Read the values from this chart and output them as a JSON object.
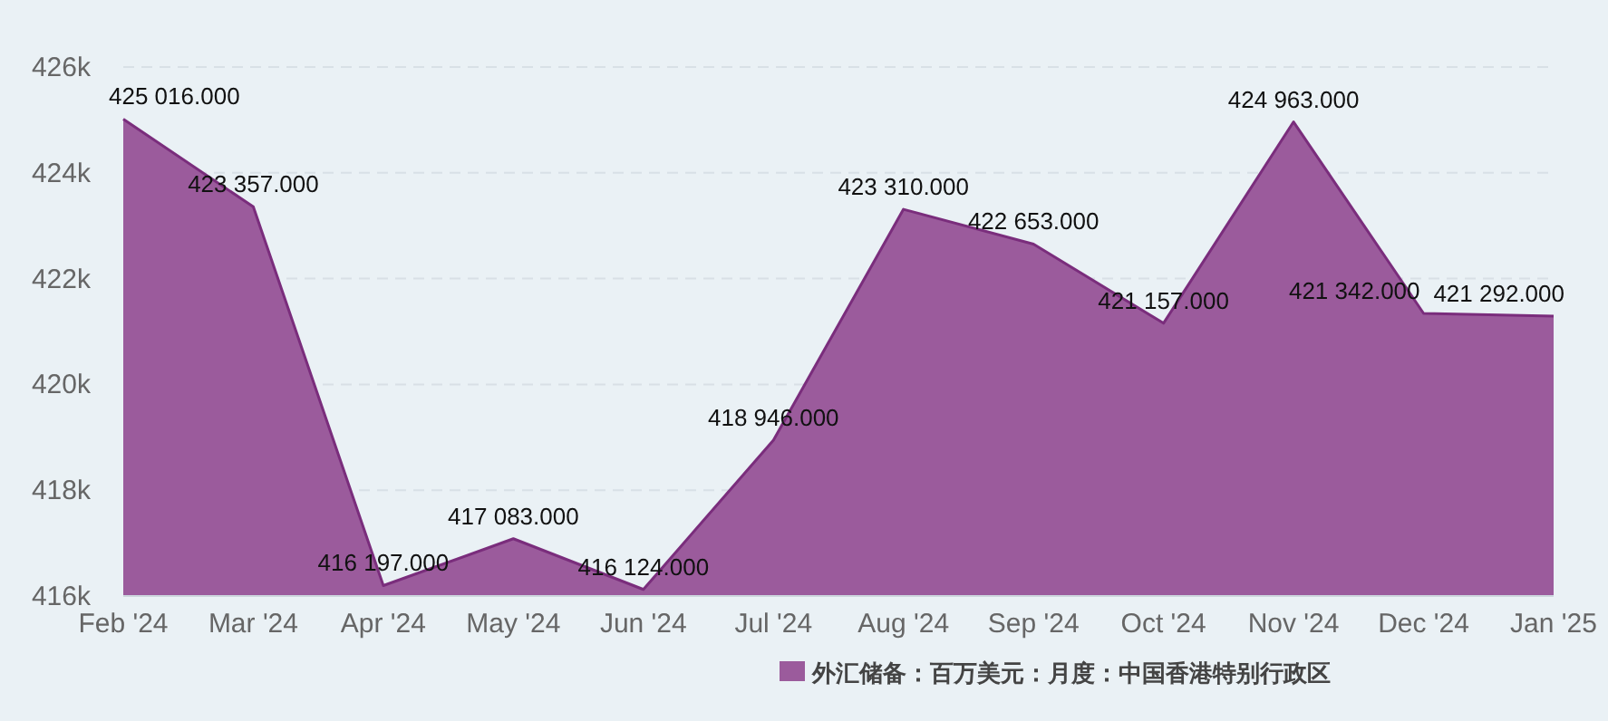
{
  "chart_data": {
    "type": "area",
    "categories": [
      "Feb '24",
      "Mar '24",
      "Apr '24",
      "May '24",
      "Jun '24",
      "Jul '24",
      "Aug '24",
      "Sep '24",
      "Oct '24",
      "Nov '24",
      "Dec '24",
      "Jan '25"
    ],
    "series": [
      {
        "name": "外汇储备：百万美元：月度：中国香港特别行政区",
        "color": "#9b5b9c",
        "values": [
          425016,
          423357,
          416197,
          417083,
          416124,
          418946,
          423310,
          422653,
          421157,
          424963,
          421342,
          421292
        ],
        "value_labels": [
          "425 016.000",
          "423 357.000",
          "416 197.000",
          "417 083.000",
          "416 124.000",
          "418 946.000",
          "423 310.000",
          "422 653.000",
          "421 157.000",
          "424 963.000",
          "421 342.000",
          "421 292.000"
        ]
      }
    ],
    "ylim": [
      416000,
      426000
    ],
    "yticks": [
      {
        "value": 416000,
        "label": "416k"
      },
      {
        "value": 418000,
        "label": "418k"
      },
      {
        "value": 420000,
        "label": "420k"
      },
      {
        "value": 422000,
        "label": "422k"
      },
      {
        "value": 424000,
        "label": "424k"
      },
      {
        "value": 426000,
        "label": "426k"
      }
    ],
    "grid": "y",
    "legend": "bottom"
  }
}
